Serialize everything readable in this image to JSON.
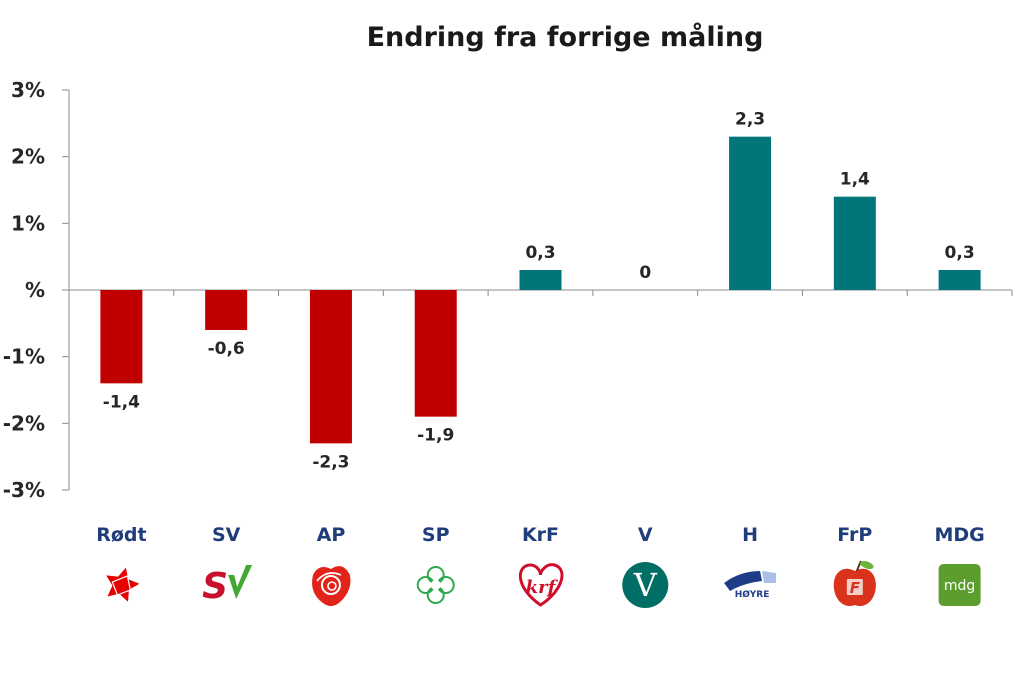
{
  "chart_data": {
    "type": "bar",
    "title": "Endring fra forrige måling",
    "xlabel": "",
    "ylabel": "",
    "ylim": [
      -3,
      3
    ],
    "y_ticks": [
      3,
      2,
      1,
      0,
      -1,
      -2,
      -3
    ],
    "y_tick_labels": [
      "3%",
      "2%",
      "1%",
      "%",
      "-1%",
      "-2%",
      "-3%"
    ],
    "grid": false,
    "legend": "none",
    "categories": [
      "Rødt",
      "SV",
      "AP",
      "SP",
      "KrF",
      "V",
      "H",
      "FrP",
      "MDG"
    ],
    "values": [
      -1.4,
      -0.6,
      -2.3,
      -1.9,
      0.3,
      0,
      2.3,
      1.4,
      0.3
    ],
    "data_labels": [
      "-1,4",
      "-0,6",
      "-2,3",
      "-1,9",
      "0,3",
      "0",
      "2,3",
      "1,4",
      "0,3"
    ],
    "colors": {
      "negative": "#C00000",
      "positive": "#00757A"
    },
    "category_logos": [
      "rodt-star-icon",
      "sv-logo-icon",
      "ap-rose-icon",
      "sp-clover-icon",
      "krf-heart-icon",
      "venstre-v-icon",
      "hoyre-logo-icon",
      "frp-apple-icon",
      "mdg-logo-icon"
    ],
    "logo_texts": {
      "sv": "SV",
      "krf": "krf",
      "venstre": "V",
      "hoyre": "HØYRE",
      "frp": "F",
      "mdg": "mdg"
    }
  }
}
